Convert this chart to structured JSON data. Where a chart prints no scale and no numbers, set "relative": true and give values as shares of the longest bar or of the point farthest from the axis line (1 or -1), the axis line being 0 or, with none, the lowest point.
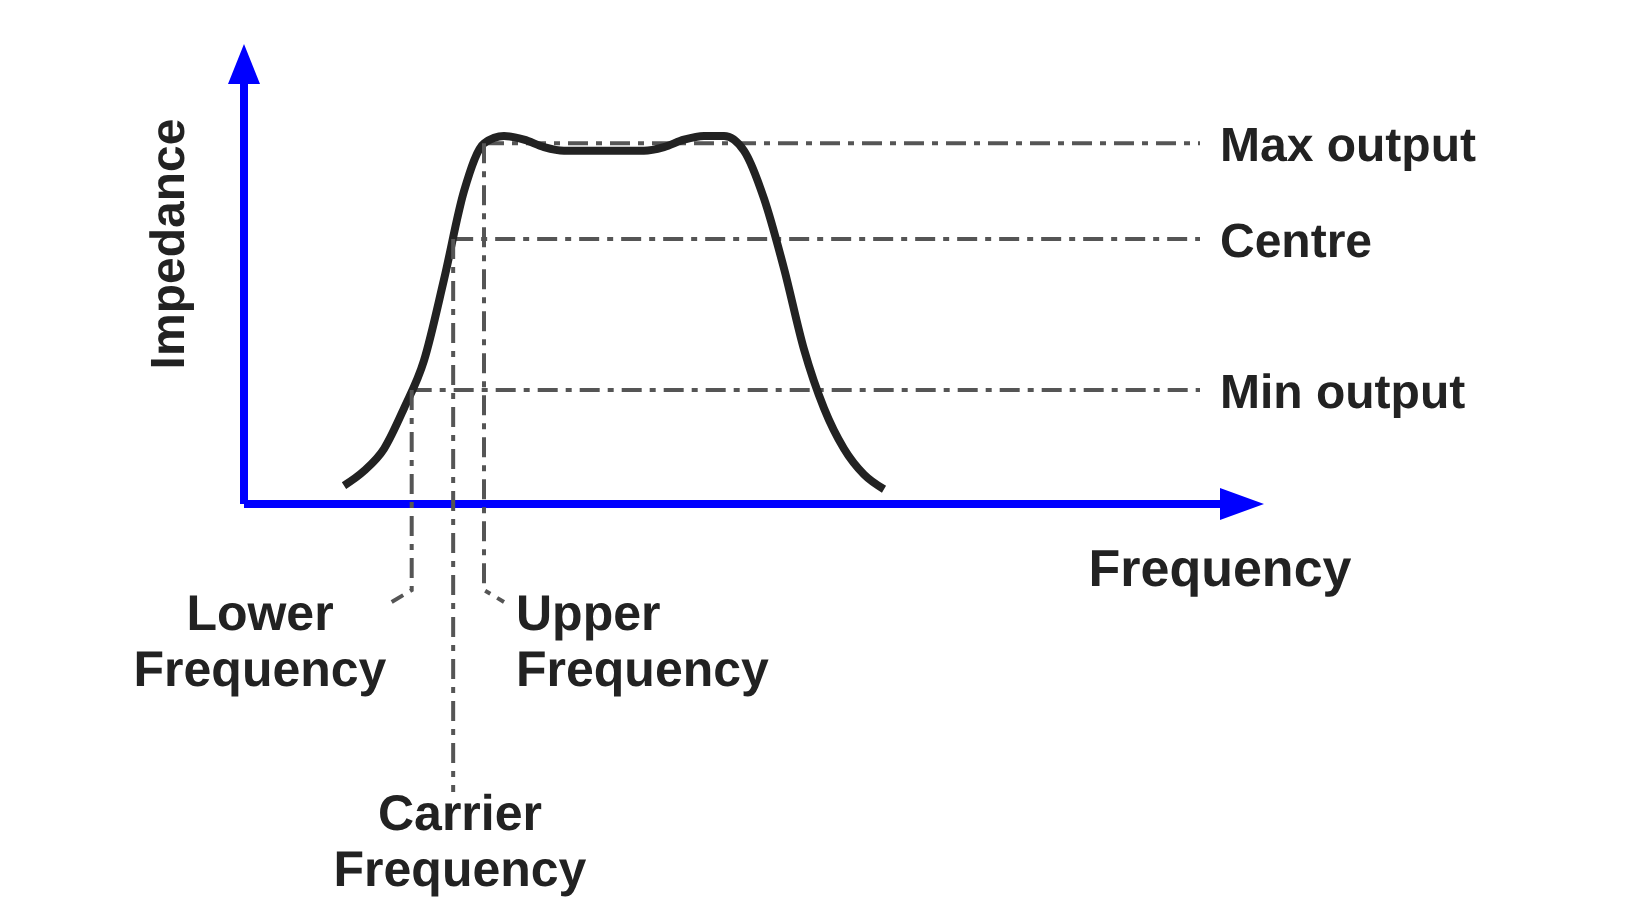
{
  "chart_data": {
    "type": "line",
    "relative": true,
    "xlabel": "Frequency",
    "ylabel": "Impedance",
    "categories": [
      null,
      null,
      null,
      null,
      null,
      null,
      null,
      null,
      null,
      null,
      null,
      null,
      null,
      null,
      null,
      null,
      null,
      null,
      null,
      null,
      null,
      null,
      null,
      null,
      null,
      null,
      null,
      null,
      null,
      null,
      null,
      null,
      null,
      null,
      null,
      null,
      null,
      null,
      null,
      null,
      null,
      null,
      null,
      null,
      null,
      null,
      null,
      null,
      null,
      null,
      null
    ],
    "series": [
      {
        "color": "#222222",
        "values": [
          null,
          null,
          null,
          null,
          null,
          0.05,
          0.09,
          0.15,
          0.26,
          0.39,
          0.61,
          0.85,
          0.98,
          1,
          0.99,
          0.97,
          0.96,
          0.96,
          0.96,
          0.96,
          0.96,
          0.97,
          0.99,
          1,
          1,
          0.96,
          0.83,
          0.64,
          0.42,
          0.26,
          0.15,
          0.08,
          0.04,
          null,
          null,
          null,
          null,
          null,
          null,
          null,
          null,
          null,
          null,
          null,
          null,
          null,
          null,
          null,
          null,
          null,
          null
        ]
      }
    ],
    "ref_lines": [
      {
        "axis": "y",
        "value": 0.98,
        "label": "Max output",
        "color": "#555555",
        "line_style": "dashed"
      },
      {
        "axis": "y",
        "value": 0.72,
        "label": "Centre",
        "color": "#555555",
        "line_style": "dashed"
      },
      {
        "axis": "y",
        "value": 0.31,
        "label": "Min output",
        "color": "#555555",
        "line_style": "dashed"
      }
    ],
    "annotations": [
      "Lower Frequency",
      "Carrier Frequency",
      "Upper Frequency"
    ],
    "line_style": "solid",
    "marker": "none"
  }
}
